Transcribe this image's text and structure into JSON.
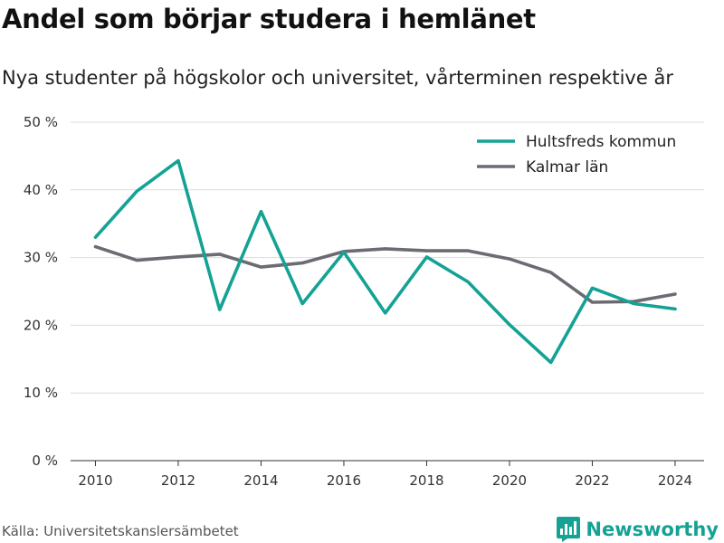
{
  "title": "Andel som börjar studera i hemlänet",
  "subtitle": "Nya studenter på högskolor och universitet, vårterminen respektive år",
  "source": "Källa: Universitetskanslersämbetet",
  "brand": "Newsworthy",
  "colors": {
    "accent": "#14a294",
    "secondary": "#6b6b73",
    "grid": "#dcdcdc"
  },
  "chart_data": {
    "type": "line",
    "title": "Andel som börjar studera i hemlänet",
    "subtitle": "Nya studenter på högskolor och universitet, vårterminen respektive år",
    "x": [
      2010,
      2011,
      2012,
      2013,
      2014,
      2015,
      2016,
      2017,
      2018,
      2019,
      2020,
      2021,
      2022,
      2023,
      2024
    ],
    "xticks": [
      2010,
      2012,
      2014,
      2016,
      2018,
      2020,
      2022,
      2024
    ],
    "xlim": [
      2009.4,
      2024.7
    ],
    "yticks": [
      0,
      10,
      20,
      30,
      40,
      50
    ],
    "ytick_labels": [
      "0 %",
      "10 %",
      "20 %",
      "30 %",
      "40 %",
      "50 %"
    ],
    "ylim": [
      0,
      50
    ],
    "grid": true,
    "legend_position": "top-right",
    "series": [
      {
        "name": "Hultsfreds kommun",
        "color": "#14a294",
        "values": [
          33.0,
          39.8,
          44.3,
          22.3,
          36.8,
          23.2,
          30.8,
          21.8,
          30.1,
          26.4,
          20.1,
          14.5,
          25.5,
          23.2,
          22.4
        ]
      },
      {
        "name": "Kalmar län",
        "color": "#6b6b73",
        "values": [
          31.6,
          29.6,
          30.1,
          30.5,
          28.6,
          29.2,
          30.9,
          31.3,
          31.0,
          31.0,
          29.8,
          27.8,
          23.4,
          23.5,
          24.6
        ]
      }
    ]
  }
}
